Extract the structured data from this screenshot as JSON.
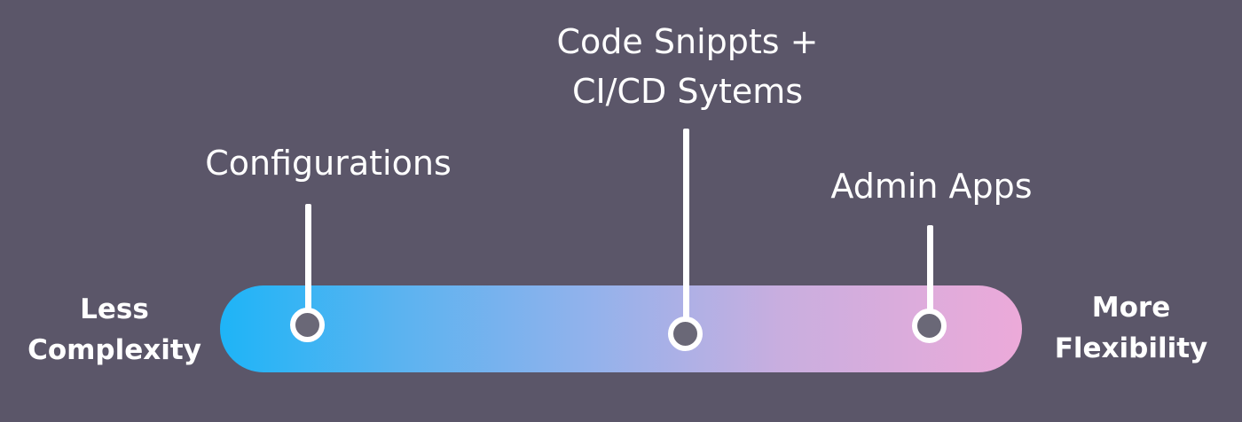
{
  "scale": {
    "left_label": [
      "Less",
      "Complexity"
    ],
    "right_label": [
      "More",
      "Flexibility"
    ],
    "gradient_colors": [
      "#1eb4f7",
      "#5ab3f0",
      "#92b2ec",
      "#c9aedf",
      "#ecaad9"
    ]
  },
  "markers": [
    {
      "label": [
        "Configurations"
      ]
    },
    {
      "label": [
        "Code Snippts +",
        "CI/CD Sytems"
      ]
    },
    {
      "label": [
        "Admin Apps"
      ]
    }
  ],
  "colors": {
    "background": "#5b5669",
    "text": "#ffffff",
    "dot_fill": "#6a6877"
  }
}
